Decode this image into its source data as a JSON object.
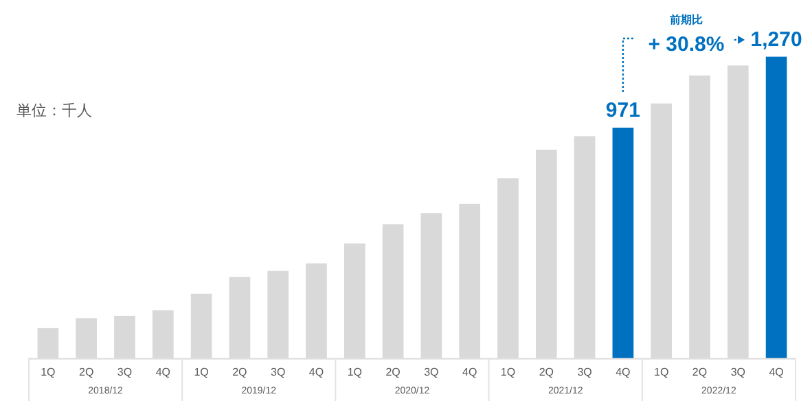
{
  "chart_data": {
    "type": "bar",
    "categories": [
      "1Q",
      "2Q",
      "3Q",
      "4Q",
      "1Q",
      "2Q",
      "3Q",
      "4Q",
      "1Q",
      "2Q",
      "3Q",
      "4Q",
      "1Q",
      "2Q",
      "3Q",
      "4Q",
      "1Q",
      "2Q",
      "3Q",
      "4Q"
    ],
    "values": [
      126,
      168,
      178,
      201,
      271,
      342,
      367,
      399,
      483,
      564,
      611,
      650,
      758,
      878,
      935,
      971,
      1073,
      1191,
      1233,
      1270
    ],
    "colors": [
      "#d9d9d9",
      "#d9d9d9",
      "#d9d9d9",
      "#d9d9d9",
      "#d9d9d9",
      "#d9d9d9",
      "#d9d9d9",
      "#d9d9d9",
      "#d9d9d9",
      "#d9d9d9",
      "#d9d9d9",
      "#d9d9d9",
      "#d9d9d9",
      "#d9d9d9",
      "#d9d9d9",
      "#0070c0",
      "#d9d9d9",
      "#d9d9d9",
      "#d9d9d9",
      "#0070c0"
    ],
    "value_labels": [
      null,
      null,
      null,
      null,
      null,
      null,
      null,
      null,
      null,
      null,
      null,
      null,
      null,
      null,
      null,
      "971",
      null,
      null,
      null,
      "1,270"
    ],
    "annotations": [
      "単位：千人",
      "2018/12",
      "2019/12",
      "2020/12",
      "2021/12",
      "2022/12",
      "前期比",
      "+ 30.8%"
    ],
    "grid": false
  }
}
